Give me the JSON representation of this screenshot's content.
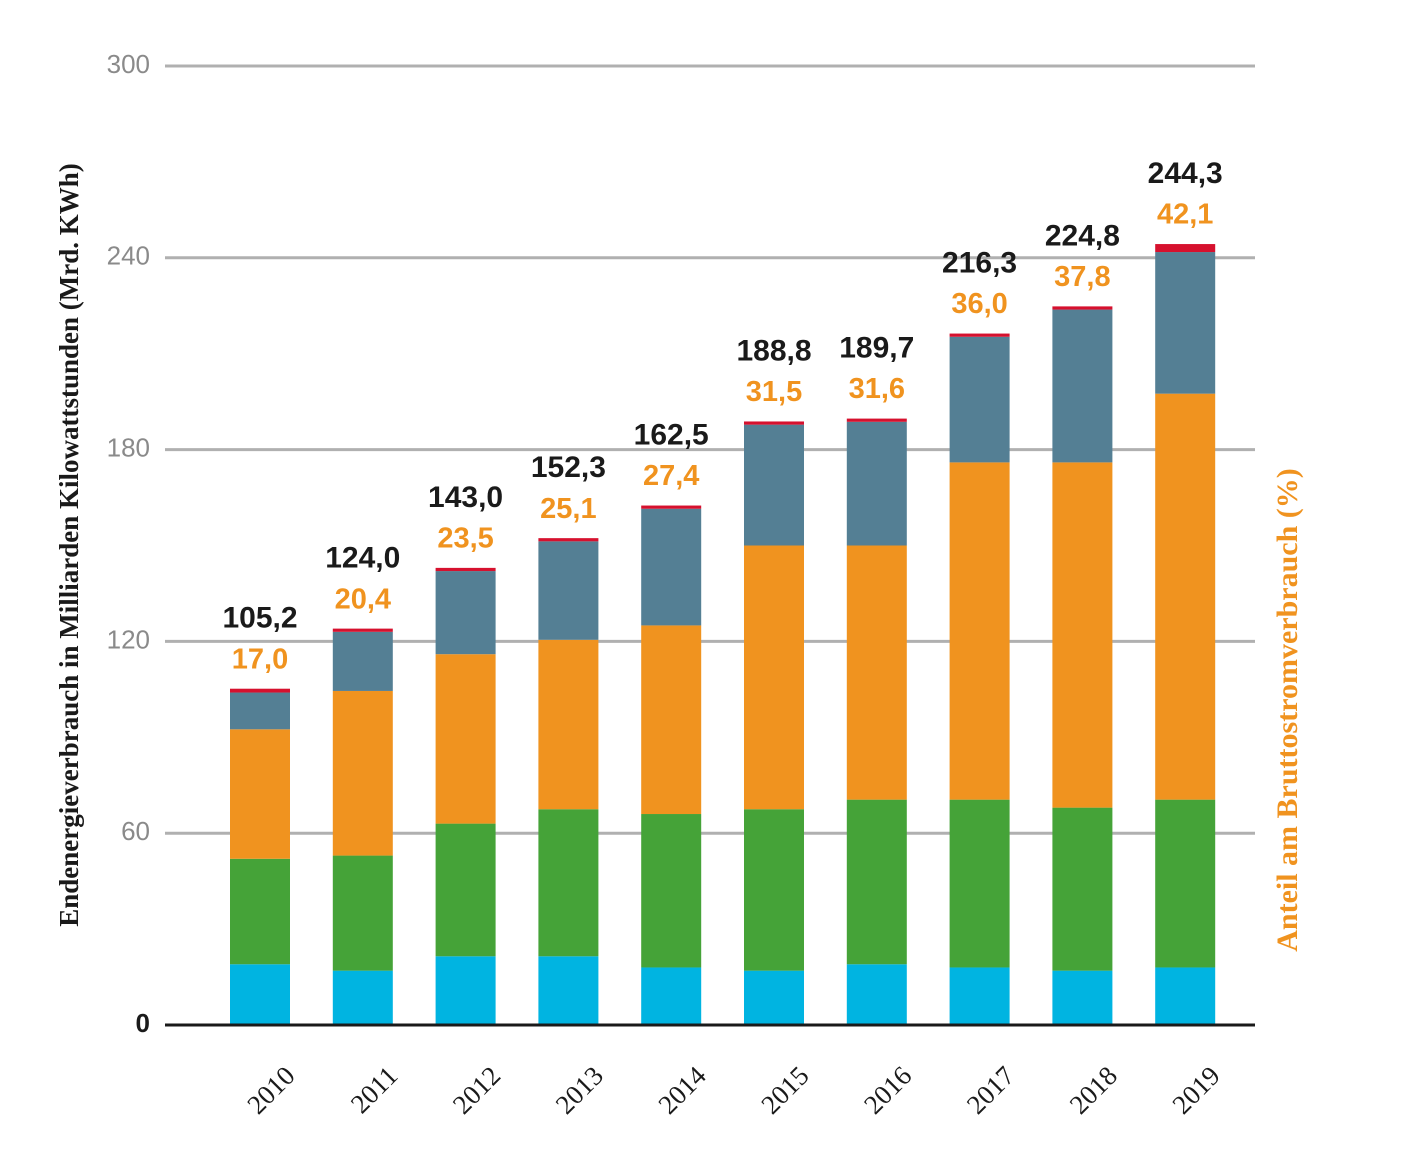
{
  "chart_data": {
    "type": "stacked_bar",
    "y_axis_title": "Endenergieverbrauch in Milliarden Kilowattstunden (Mrd. KWh)",
    "y2_axis_title": "Anteil am Bruttostromverbrauch  (%)",
    "categories": [
      "2010",
      "2011",
      "2012",
      "2013",
      "2014",
      "2015",
      "2016",
      "2017",
      "2018",
      "2019"
    ],
    "series": [
      {
        "color": "#00b4e1",
        "values": [
          19,
          17,
          21.5,
          21.5,
          18,
          17,
          19,
          18,
          17,
          18
        ]
      },
      {
        "color": "#45a338",
        "values": [
          33,
          36,
          41.5,
          46,
          48,
          50.5,
          51.5,
          52.5,
          51,
          52.5
        ]
      },
      {
        "color": "#f0931f",
        "values": [
          40.5,
          51.5,
          53,
          53,
          59,
          82.5,
          79.5,
          105.5,
          108,
          127
        ]
      },
      {
        "color": "#547f94",
        "values": [
          11.5,
          18.5,
          26,
          30.8,
          36.5,
          37.8,
          38.7,
          39.3,
          47.8,
          44.3
        ]
      },
      {
        "color": "#d6112e",
        "values": [
          1.2,
          1,
          1,
          1,
          1,
          1,
          1,
          1,
          1,
          2.5
        ]
      }
    ],
    "totals": {
      "values": [
        105.2,
        124.0,
        143.0,
        152.3,
        162.5,
        188.8,
        189.7,
        216.3,
        224.8,
        244.3
      ],
      "value_labels": [
        "105,2",
        "124,0",
        "143,0",
        "152,3",
        "162,5",
        "188,8",
        "189,7",
        "216,3",
        "224,8",
        "244,3"
      ]
    },
    "shares": {
      "values": [
        17.0,
        20.4,
        23.5,
        25.1,
        27.4,
        31.5,
        31.6,
        36.0,
        37.8,
        42.1
      ],
      "value_labels": [
        "17,0",
        "20,4",
        "23,5",
        "25,1",
        "27,4",
        "31,5",
        "31,6",
        "36,0",
        "37,8",
        "42,1"
      ],
      "color": "#f0931f"
    },
    "ylim": [
      0,
      300
    ],
    "yticks": [
      0,
      60,
      120,
      180,
      240,
      300
    ],
    "grid": true
  }
}
